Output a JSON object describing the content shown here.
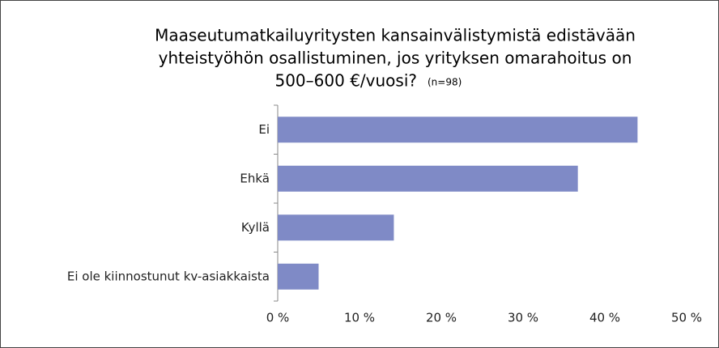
{
  "chart_data": {
    "type": "barh",
    "title": [
      "Maaseutumatkailuyritysten kansainvälistymistä edistävään",
      "yhteistyöhön osallistuminen, jos yrityksen omarahoitus on",
      "500–600 €/vuosi?"
    ],
    "subtitle": "(n=98)",
    "categories": [
      "Ei",
      "Ehkä",
      "Kyllä",
      "Ei ole kiinnostunut kv-asiakkaista"
    ],
    "values": [
      44,
      36.7,
      14.2,
      5
    ],
    "color": "#7f8ac6",
    "xlim": [
      0,
      50
    ],
    "xticks": [
      {
        "value": 0,
        "label": "0 %"
      },
      {
        "value": 10,
        "label": "10 %"
      },
      {
        "value": 20,
        "label": "20 %"
      },
      {
        "value": 30,
        "label": "30 %"
      },
      {
        "value": 40,
        "label": "40 %"
      },
      {
        "value": 50,
        "label": "50 %"
      }
    ],
    "grid": false
  }
}
